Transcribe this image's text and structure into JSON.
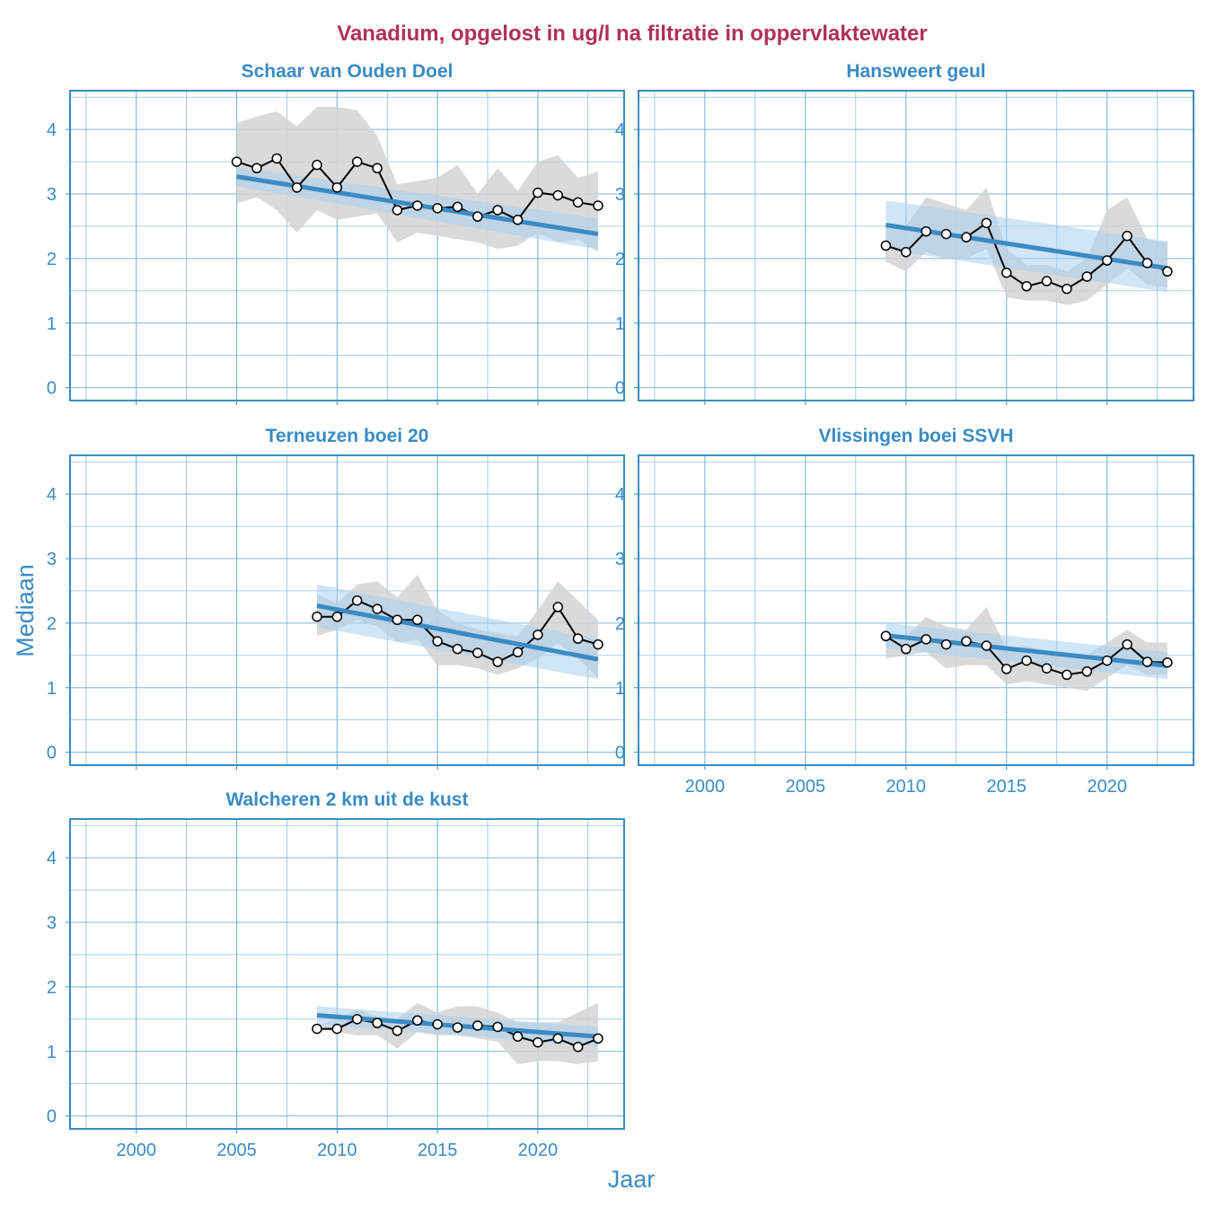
{
  "title": "Vanadium, opgelost in ug/l na filtratie in oppervlaktewater",
  "xlabel": "Jaar",
  "ylabel": "Mediaan",
  "colors": {
    "title": "#B0305A",
    "accent": "#3A8BC4",
    "grid": "#7DB4DA",
    "ribbon": "#D3D3D3",
    "trend_band": "#A9CFEE",
    "line": "#000000"
  },
  "chart_data": [
    {
      "type": "line",
      "panel": "Schaar van Ouden Doel",
      "xlim": [
        1996.7,
        2024.3
      ],
      "ylim": [
        -0.2,
        4.6
      ],
      "x_ticks": [
        2000,
        2005,
        2010,
        2015,
        2020
      ],
      "y_ticks": [
        0,
        1,
        2,
        3,
        4
      ],
      "show_x_ticks": false,
      "years": [
        2005,
        2006,
        2007,
        2008,
        2009,
        2010,
        2011,
        2012,
        2013,
        2014,
        2015,
        2016,
        2017,
        2018,
        2019,
        2020,
        2021,
        2022,
        2023
      ],
      "median": [
        3.5,
        3.4,
        3.55,
        3.1,
        3.45,
        3.1,
        3.5,
        3.4,
        2.75,
        2.82,
        2.78,
        2.8,
        2.65,
        2.75,
        2.6,
        3.02,
        2.98,
        2.87,
        2.82
      ],
      "band_upper": [
        4.1,
        4.2,
        4.28,
        4.05,
        4.35,
        4.35,
        4.3,
        3.9,
        3.15,
        3.2,
        3.25,
        3.45,
        3.0,
        3.4,
        3.05,
        3.5,
        3.6,
        3.25,
        3.35
      ],
      "band_lower": [
        2.85,
        2.95,
        2.75,
        2.4,
        2.75,
        2.6,
        2.65,
        2.7,
        2.25,
        2.4,
        2.35,
        2.3,
        2.25,
        2.15,
        2.2,
        2.4,
        2.25,
        2.3,
        2.1
      ],
      "trend": [
        3.27,
        2.38
      ],
      "trend_ci_upper": [
        3.42,
        2.62
      ],
      "trend_ci_lower": [
        3.12,
        2.14
      ]
    },
    {
      "type": "line",
      "panel": "Hansweert geul",
      "xlim": [
        1996.7,
        2024.3
      ],
      "ylim": [
        -0.2,
        4.6
      ],
      "x_ticks": [
        2000,
        2005,
        2010,
        2015,
        2020
      ],
      "y_ticks": [
        0,
        1,
        2,
        3,
        4
      ],
      "show_x_ticks": false,
      "years": [
        2009,
        2010,
        2011,
        2012,
        2013,
        2014,
        2015,
        2016,
        2017,
        2018,
        2019,
        2020,
        2021,
        2022,
        2023
      ],
      "median": [
        2.2,
        2.1,
        2.42,
        2.38,
        2.33,
        2.55,
        1.78,
        1.57,
        1.65,
        1.53,
        1.72,
        1.97,
        2.35,
        1.93,
        1.8
      ],
      "band_upper": [
        2.5,
        2.5,
        2.95,
        2.85,
        2.75,
        3.1,
        2.15,
        1.9,
        1.9,
        1.8,
        2.0,
        2.75,
        2.95,
        2.3,
        2.25
      ],
      "band_lower": [
        1.95,
        1.8,
        2.1,
        2.0,
        2.0,
        2.15,
        1.4,
        1.35,
        1.35,
        1.28,
        1.35,
        1.6,
        1.85,
        1.6,
        1.55
      ],
      "trend": [
        2.52,
        1.85
      ],
      "trend_ci_upper": [
        2.9,
        2.27
      ],
      "trend_ci_lower": [
        2.14,
        1.48
      ]
    },
    {
      "type": "line",
      "panel": "Terneuzen boei 20",
      "xlim": [
        1996.7,
        2024.3
      ],
      "ylim": [
        -0.2,
        4.6
      ],
      "x_ticks": [
        2000,
        2005,
        2010,
        2015,
        2020
      ],
      "y_ticks": [
        0,
        1,
        2,
        3,
        4
      ],
      "show_x_ticks": false,
      "years": [
        2009,
        2010,
        2011,
        2012,
        2013,
        2014,
        2015,
        2016,
        2017,
        2018,
        2019,
        2020,
        2021,
        2022,
        2023
      ],
      "median": [
        2.1,
        2.1,
        2.35,
        2.22,
        2.05,
        2.05,
        1.72,
        1.6,
        1.54,
        1.4,
        1.55,
        1.82,
        2.25,
        1.76,
        1.67
      ],
      "band_upper": [
        2.45,
        2.3,
        2.6,
        2.65,
        2.4,
        2.75,
        2.2,
        2.0,
        1.9,
        1.85,
        1.8,
        2.2,
        2.65,
        2.35,
        2.05
      ],
      "band_lower": [
        1.8,
        1.9,
        2.05,
        1.95,
        1.7,
        1.75,
        1.35,
        1.35,
        1.3,
        1.2,
        1.3,
        1.45,
        1.7,
        1.45,
        1.15
      ],
      "trend": [
        2.27,
        1.44
      ],
      "trend_ci_upper": [
        2.6,
        1.75
      ],
      "trend_ci_lower": [
        1.94,
        1.13
      ]
    },
    {
      "type": "line",
      "panel": "Vlissingen boei SSVH",
      "xlim": [
        1996.7,
        2024.3
      ],
      "ylim": [
        -0.2,
        4.6
      ],
      "x_ticks": [
        2000,
        2005,
        2010,
        2015,
        2020
      ],
      "y_ticks": [
        0,
        1,
        2,
        3,
        4
      ],
      "show_x_ticks": true,
      "years": [
        2009,
        2010,
        2011,
        2012,
        2013,
        2014,
        2015,
        2016,
        2017,
        2018,
        2019,
        2020,
        2021,
        2022,
        2023
      ],
      "median": [
        1.8,
        1.6,
        1.75,
        1.67,
        1.72,
        1.65,
        1.29,
        1.42,
        1.3,
        1.2,
        1.25,
        1.42,
        1.67,
        1.4,
        1.39
      ],
      "band_upper": [
        1.8,
        1.8,
        2.1,
        1.95,
        1.9,
        2.25,
        1.6,
        1.65,
        1.55,
        1.55,
        1.5,
        1.7,
        1.9,
        1.7,
        1.7
      ],
      "band_lower": [
        1.45,
        1.5,
        1.55,
        1.3,
        1.35,
        1.35,
        1.05,
        1.1,
        1.05,
        1.0,
        0.95,
        1.15,
        1.35,
        1.2,
        1.2
      ],
      "trend": [
        1.81,
        1.34
      ],
      "trend_ci_upper": [
        2.0,
        1.55
      ],
      "trend_ci_lower": [
        1.62,
        1.13
      ]
    },
    {
      "type": "line",
      "panel": "Walcheren 2 km uit de kust",
      "xlim": [
        1996.7,
        2024.3
      ],
      "ylim": [
        -0.2,
        4.6
      ],
      "x_ticks": [
        2000,
        2005,
        2010,
        2015,
        2020
      ],
      "y_ticks": [
        0,
        1,
        2,
        3,
        4
      ],
      "show_x_ticks": true,
      "years": [
        2009,
        2010,
        2011,
        2012,
        2013,
        2014,
        2015,
        2016,
        2017,
        2018,
        2019,
        2020,
        2021,
        2022,
        2023
      ],
      "median": [
        1.35,
        1.35,
        1.5,
        1.44,
        1.32,
        1.48,
        1.42,
        1.37,
        1.4,
        1.38,
        1.23,
        1.14,
        1.2,
        1.07,
        1.2
      ],
      "band_upper": [
        1.4,
        1.5,
        1.65,
        1.55,
        1.5,
        1.75,
        1.6,
        1.7,
        1.7,
        1.6,
        1.45,
        1.45,
        1.45,
        1.6,
        1.75
      ],
      "band_lower": [
        1.35,
        1.3,
        1.25,
        1.25,
        1.05,
        1.3,
        1.25,
        1.25,
        1.2,
        1.15,
        0.8,
        0.85,
        0.85,
        0.8,
        0.85
      ],
      "trend": [
        1.56,
        1.23
      ],
      "trend_ci_upper": [
        1.7,
        1.38
      ],
      "trend_ci_lower": [
        1.42,
        1.08
      ]
    }
  ]
}
